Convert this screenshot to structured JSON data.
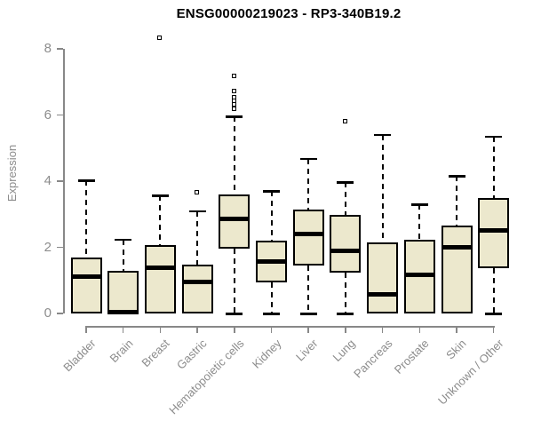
{
  "chart_data": {
    "type": "boxplot",
    "title": "ENSG00000219023 - RP3-340B19.2",
    "xlabel": "",
    "ylabel": "Expression",
    "ylim": [
      0,
      8
    ],
    "yticks": [
      0,
      2,
      4,
      6,
      8
    ],
    "grid": false,
    "legend": "none",
    "categories": [
      "Bladder",
      "Brain",
      "Breast",
      "Gastric",
      "Hematopoietic cells",
      "Kidney",
      "Liver",
      "Lung",
      "Pancreas",
      "Prostate",
      "Skin",
      "Unknown / Other"
    ],
    "boxes": [
      {
        "category": "Bladder",
        "whisker_low": 0,
        "q1": 0,
        "median": 1.12,
        "q3": 1.7,
        "whisker_high": 4.02,
        "outliers": []
      },
      {
        "category": "Brain",
        "whisker_low": 0,
        "q1": 0,
        "median": 0.05,
        "q3": 1.3,
        "whisker_high": 2.23,
        "outliers": []
      },
      {
        "category": "Breast",
        "whisker_low": 0,
        "q1": 0,
        "median": 1.37,
        "q3": 2.08,
        "whisker_high": 3.57,
        "outliers": [
          8.33
        ]
      },
      {
        "category": "Gastric",
        "whisker_low": 0,
        "q1": 0,
        "median": 0.95,
        "q3": 1.47,
        "whisker_high": 3.1,
        "outliers": [
          3.66
        ]
      },
      {
        "category": "Hematopoietic cells",
        "whisker_low": 0,
        "q1": 1.97,
        "median": 2.86,
        "q3": 3.6,
        "whisker_high": 5.95,
        "outliers": [
          7.17,
          6.72,
          6.52,
          6.42,
          6.32,
          6.18
        ]
      },
      {
        "category": "Kidney",
        "whisker_low": 0,
        "q1": 0.94,
        "median": 1.56,
        "q3": 2.19,
        "whisker_high": 3.7,
        "outliers": []
      },
      {
        "category": "Liver",
        "whisker_low": 0,
        "q1": 1.46,
        "median": 2.41,
        "q3": 3.13,
        "whisker_high": 4.68,
        "outliers": []
      },
      {
        "category": "Lung",
        "whisker_low": 0,
        "q1": 1.23,
        "median": 1.89,
        "q3": 2.99,
        "whisker_high": 3.97,
        "outliers": [
          5.79
        ]
      },
      {
        "category": "Pancreas",
        "whisker_low": 0,
        "q1": 0,
        "median": 0.58,
        "q3": 2.15,
        "whisker_high": 5.4,
        "outliers": []
      },
      {
        "category": "Prostate",
        "whisker_low": 0,
        "q1": 0,
        "median": 1.16,
        "q3": 2.23,
        "whisker_high": 3.3,
        "outliers": []
      },
      {
        "category": "Skin",
        "whisker_low": 0,
        "q1": 0,
        "median": 2.0,
        "q3": 2.67,
        "whisker_high": 4.16,
        "outliers": []
      },
      {
        "category": "Unknown / Other",
        "whisker_low": 0,
        "q1": 1.38,
        "median": 2.51,
        "q3": 3.48,
        "whisker_high": 5.35,
        "outliers": []
      }
    ],
    "colors": {
      "box_fill": "#ECE8CD",
      "box_border": "#000000",
      "median": "#000000",
      "whisker": "#000000",
      "axis": "#888888",
      "tick_label": "#8C8C8C",
      "title_text": "#000000",
      "outlier_fill": "#FFFFFF",
      "background": "#FFFFFF"
    }
  }
}
